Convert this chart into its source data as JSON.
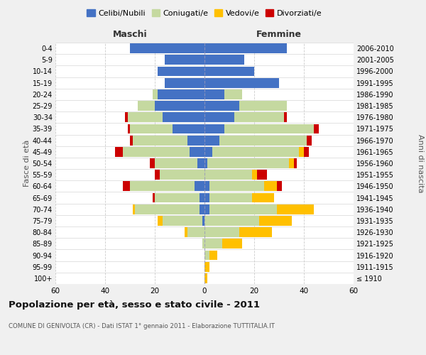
{
  "age_groups": [
    "100+",
    "95-99",
    "90-94",
    "85-89",
    "80-84",
    "75-79",
    "70-74",
    "65-69",
    "60-64",
    "55-59",
    "50-54",
    "45-49",
    "40-44",
    "35-39",
    "30-34",
    "25-29",
    "20-24",
    "15-19",
    "10-14",
    "5-9",
    "0-4"
  ],
  "birth_years": [
    "≤ 1910",
    "1911-1915",
    "1916-1920",
    "1921-1925",
    "1926-1930",
    "1931-1935",
    "1936-1940",
    "1941-1945",
    "1946-1950",
    "1951-1955",
    "1956-1960",
    "1961-1965",
    "1966-1970",
    "1971-1975",
    "1976-1980",
    "1981-1985",
    "1986-1990",
    "1991-1995",
    "1996-2000",
    "2001-2005",
    "2006-2010"
  ],
  "males": {
    "celibe": [
      0,
      0,
      0,
      0,
      0,
      1,
      2,
      2,
      4,
      0,
      3,
      6,
      7,
      13,
      17,
      20,
      19,
      16,
      19,
      16,
      30
    ],
    "coniugato": [
      0,
      0,
      0,
      1,
      7,
      16,
      26,
      18,
      26,
      18,
      17,
      27,
      22,
      17,
      14,
      7,
      2,
      0,
      0,
      0,
      0
    ],
    "vedovo": [
      0,
      0,
      0,
      0,
      1,
      2,
      1,
      0,
      0,
      0,
      0,
      0,
      0,
      0,
      0,
      0,
      0,
      0,
      0,
      0,
      0
    ],
    "divorziato": [
      0,
      0,
      0,
      0,
      0,
      0,
      0,
      1,
      3,
      2,
      2,
      3,
      1,
      1,
      1,
      0,
      0,
      0,
      0,
      0,
      0
    ]
  },
  "females": {
    "nubile": [
      0,
      0,
      0,
      0,
      0,
      0,
      2,
      2,
      2,
      0,
      1,
      3,
      6,
      8,
      12,
      14,
      8,
      30,
      20,
      16,
      33
    ],
    "coniugata": [
      0,
      0,
      2,
      7,
      14,
      22,
      27,
      17,
      22,
      19,
      33,
      35,
      35,
      36,
      20,
      19,
      7,
      0,
      0,
      0,
      0
    ],
    "vedova": [
      1,
      2,
      3,
      8,
      13,
      13,
      15,
      9,
      5,
      2,
      2,
      2,
      0,
      0,
      0,
      0,
      0,
      0,
      0,
      0,
      0
    ],
    "divorziata": [
      0,
      0,
      0,
      0,
      0,
      0,
      0,
      0,
      2,
      4,
      1,
      2,
      2,
      2,
      1,
      0,
      0,
      0,
      0,
      0,
      0
    ]
  },
  "colors": {
    "celibe": "#4472c4",
    "coniugato": "#c5d9a0",
    "vedovo": "#ffc000",
    "divorziato": "#cc0000"
  },
  "xlim": 60,
  "title": "Popolazione per età, sesso e stato civile - 2011",
  "subtitle": "COMUNE DI GENIVOLTA (CR) - Dati ISTAT 1° gennaio 2011 - Elaborazione TUTTITALIA.IT",
  "ylabel": "Fasce di età",
  "ylabel_right": "Anni di nascita",
  "xlabel_maschi": "Maschi",
  "xlabel_femmine": "Femmine",
  "bg_color": "#f0f0f0",
  "plot_bg_color": "#ffffff",
  "grid_color": "#cccccc"
}
